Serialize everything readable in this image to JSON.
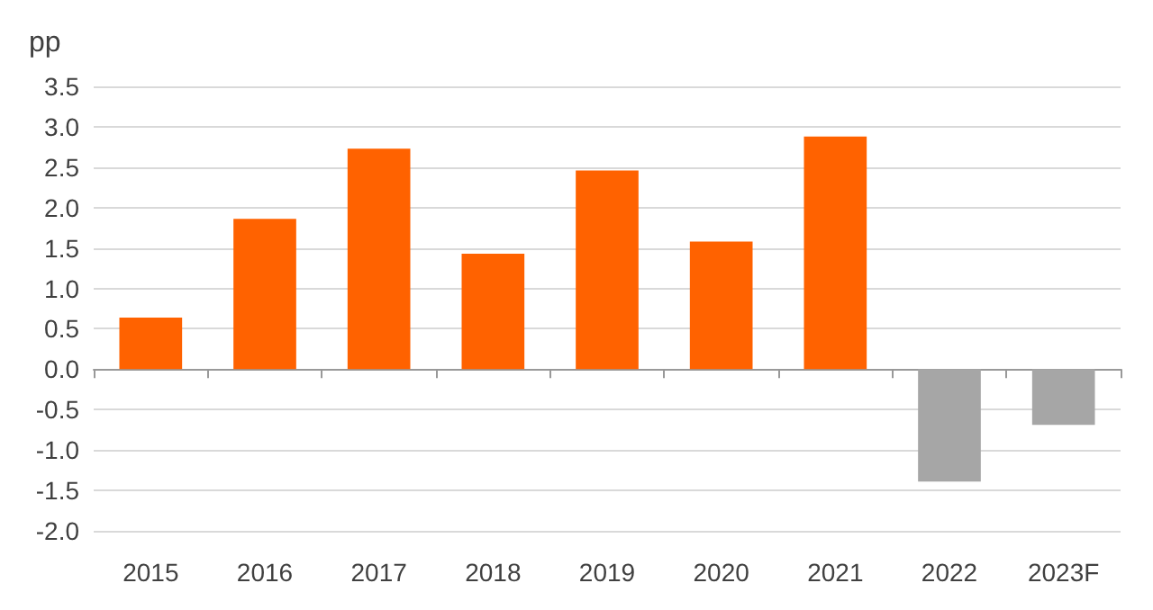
{
  "chart_data": {
    "type": "bar",
    "ylabel": "pp",
    "categories": [
      "2015",
      "2016",
      "2017",
      "2018",
      "2019",
      "2020",
      "2021",
      "2022",
      "2023F"
    ],
    "values": [
      0.64,
      1.86,
      2.73,
      1.43,
      2.46,
      1.58,
      2.88,
      -1.39,
      -0.69
    ],
    "colors": [
      "#ff6200",
      "#ff6200",
      "#ff6200",
      "#ff6200",
      "#ff6200",
      "#ff6200",
      "#ff6200",
      "#a6a6a6",
      "#a6a6a6"
    ],
    "ylim": [
      -2,
      3.5
    ],
    "yticks": [
      {
        "value": -2,
        "label": "-2.0"
      },
      -1.5,
      {
        "value": -1,
        "label": "-1.0"
      },
      -0.5,
      {
        "value": 0,
        "label": "0.0"
      },
      0.5,
      {
        "value": 1,
        "label": "1.0"
      },
      1.5,
      {
        "value": 2,
        "label": "2.0"
      },
      2.5,
      {
        "value": 3,
        "label": "3.0"
      },
      3.5
    ],
    "grid": "y"
  }
}
